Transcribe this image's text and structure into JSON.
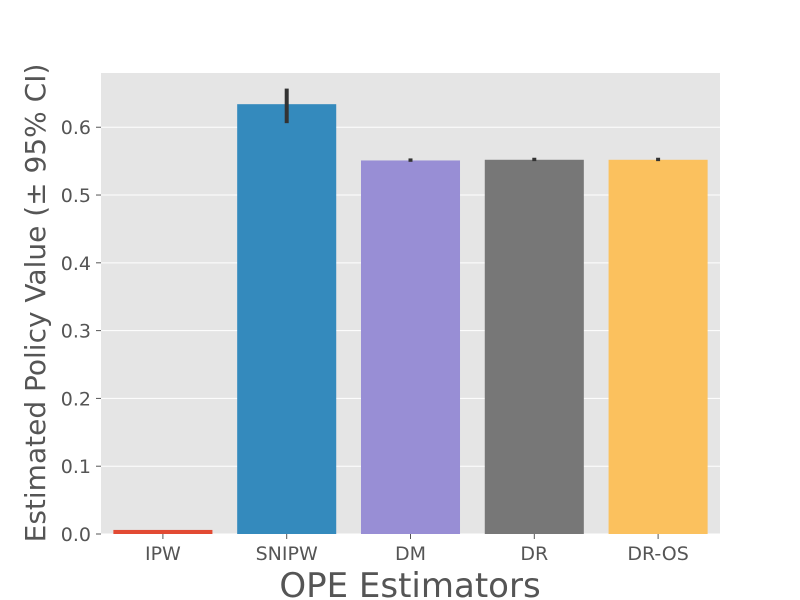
{
  "chart_data": {
    "type": "bar",
    "title": "",
    "xlabel": "OPE Estimators",
    "ylabel": "Estimated Policy Value (± 95% CI)",
    "categories": [
      "IPW",
      "SNIPW",
      "DM",
      "DR",
      "DR-OS"
    ],
    "values": [
      0.006,
      0.634,
      0.551,
      0.552,
      0.552
    ],
    "ci_low": [
      0.006,
      0.606,
      0.549,
      0.55,
      0.55
    ],
    "ci_high": [
      0.006,
      0.657,
      0.554,
      0.555,
      0.555
    ],
    "colors": [
      "#E24A33",
      "#348ABD",
      "#988ED5",
      "#777777",
      "#FBC15E"
    ],
    "ylim": [
      0,
      0.68
    ],
    "yticks": [
      0.0,
      0.1,
      0.2,
      0.3,
      0.4,
      0.5,
      0.6
    ],
    "ytick_labels": [
      "0.0",
      "0.1",
      "0.2",
      "0.3",
      "0.4",
      "0.5",
      "0.6"
    ],
    "grid": true,
    "plot_background": "#E5E5E5",
    "grid_color": "#FFFFFF",
    "errorbar_color": "#333333"
  }
}
